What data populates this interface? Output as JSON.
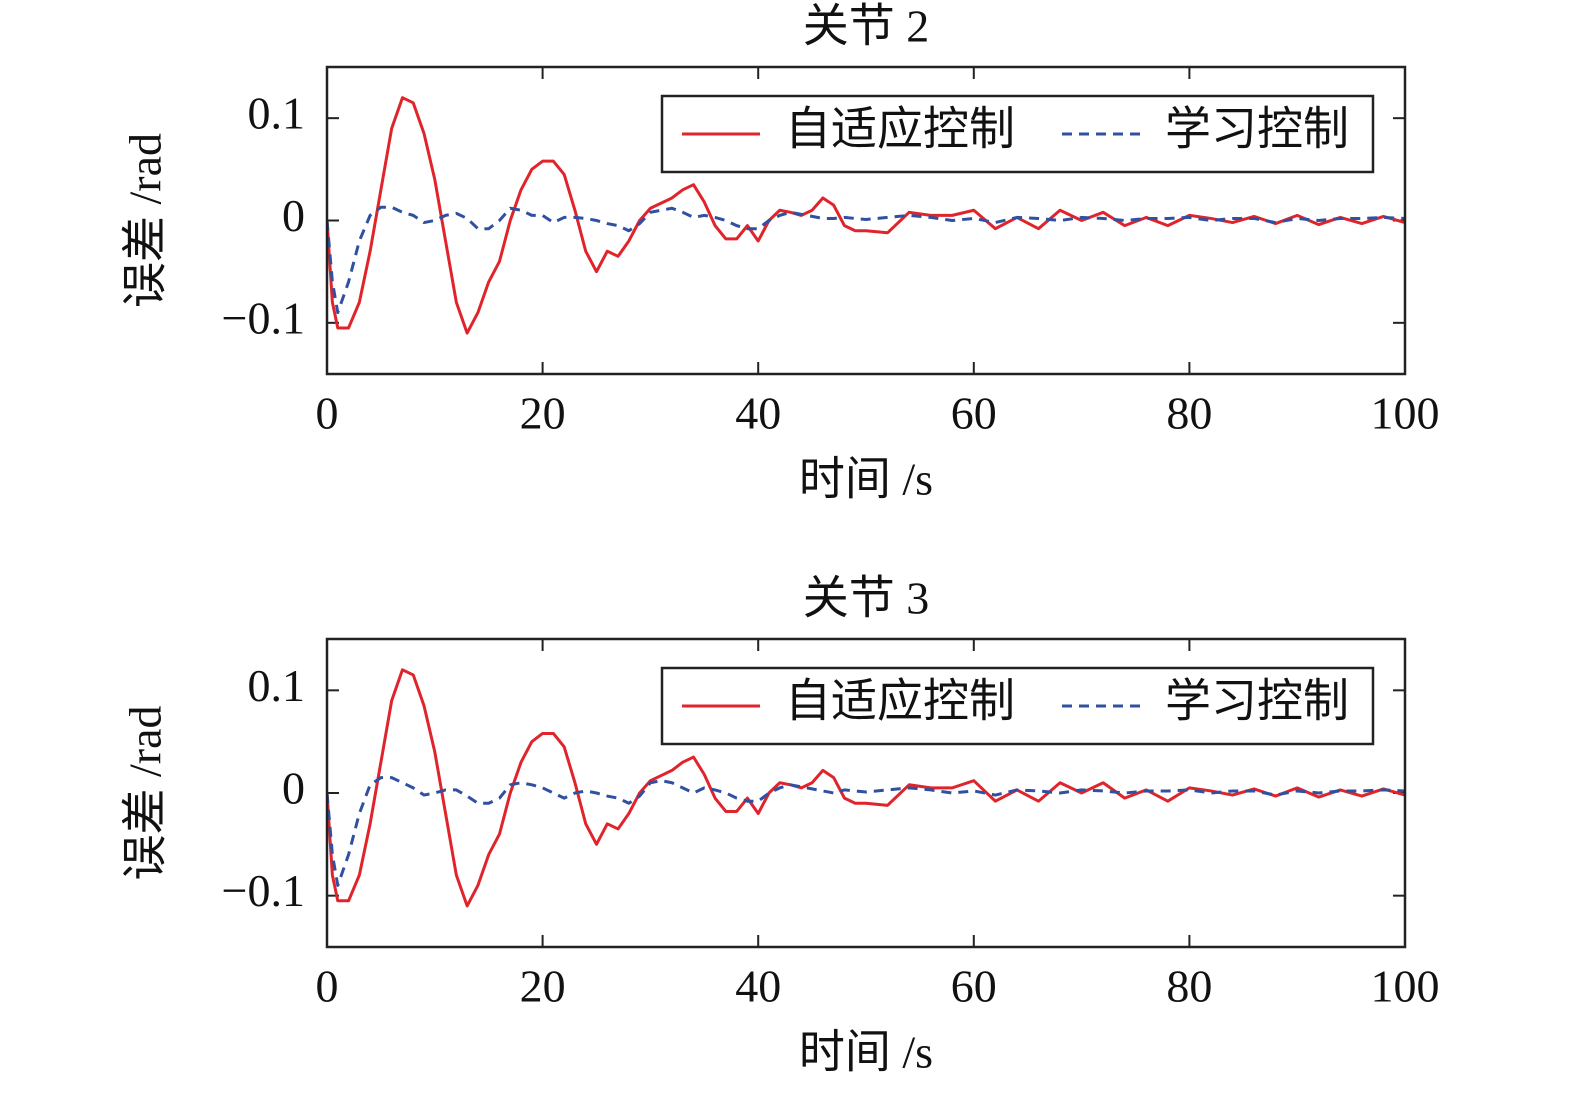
{
  "chart_data": [
    {
      "type": "line",
      "title": "关节 2",
      "xlabel": "时间 /s",
      "ylabel": "误差 /rad",
      "x": [
        0,
        0.5,
        1,
        2,
        3,
        4,
        5,
        6,
        7,
        8,
        9,
        10,
        11,
        12,
        13,
        14,
        15,
        16,
        17,
        18,
        19,
        20,
        21,
        22,
        23,
        24,
        25,
        26,
        27,
        28,
        29,
        30,
        31,
        32,
        33,
        34,
        35,
        36,
        37,
        38,
        39,
        40,
        41,
        42,
        43,
        44,
        45,
        46,
        47,
        48,
        49,
        50,
        52,
        54,
        56,
        58,
        60,
        62,
        64,
        66,
        68,
        70,
        72,
        74,
        76,
        78,
        80,
        82,
        84,
        86,
        88,
        90,
        92,
        94,
        96,
        98,
        100
      ],
      "series": [
        {
          "name": "自适应控制",
          "color": "#e0242b",
          "dash": false,
          "values": [
            0,
            -0.08,
            -0.105,
            -0.105,
            -0.08,
            -0.03,
            0.03,
            0.09,
            0.12,
            0.115,
            0.085,
            0.04,
            -0.02,
            -0.08,
            -0.11,
            -0.09,
            -0.06,
            -0.04,
            0,
            0.03,
            0.05,
            0.058,
            0.058,
            0.045,
            0.01,
            -0.03,
            -0.05,
            -0.03,
            -0.035,
            -0.02,
            0,
            0.012,
            0.017,
            0.022,
            0.03,
            0.035,
            0.018,
            -0.005,
            -0.018,
            -0.018,
            -0.005,
            -0.02,
            0,
            0.01,
            0.008,
            0.005,
            0.01,
            0.022,
            0.015,
            -0.005,
            -0.01,
            -0.01,
            -0.012,
            0.008,
            0.005,
            0.005,
            0.01,
            -0.008,
            0.003,
            -0.008,
            0.01,
            0,
            0.008,
            -0.005,
            0.003,
            -0.005,
            0.005,
            0.002,
            -0.002,
            0.004,
            -0.003,
            0.005,
            -0.004,
            0.003,
            -0.003,
            0.004,
            -0.002
          ]
        },
        {
          "name": "学习控制",
          "color": "#3050a0",
          "dash": true,
          "values": [
            0,
            -0.06,
            -0.09,
            -0.06,
            -0.02,
            0.005,
            0.013,
            0.013,
            0.008,
            0.005,
            -0.002,
            0,
            0.005,
            0.007,
            0.002,
            -0.008,
            -0.008,
            0,
            0.012,
            0.01,
            0.005,
            0.005,
            -0.002,
            0.003,
            0.003,
            0.002,
            0,
            -0.003,
            -0.005,
            -0.01,
            -0.003,
            0.008,
            0.01,
            0.012,
            0.008,
            0.003,
            0.005,
            0.003,
            0,
            -0.005,
            -0.008,
            -0.008,
            0,
            0.005,
            0.008,
            0.006,
            0.004,
            0.002,
            0.002,
            0.003,
            0.002,
            0.001,
            0.003,
            0.005,
            0.003,
            0,
            0.002,
            -0.002,
            0.003,
            0.002,
            0,
            0.003,
            0.002,
            0,
            0.002,
            0.002,
            0.003,
            0,
            0.002,
            0.002,
            -0.002,
            0.002,
            0,
            0.002,
            0.002,
            0.003,
            0.002
          ]
        }
      ],
      "xlim": [
        0,
        100
      ],
      "xticks": [
        0,
        20,
        40,
        60,
        80,
        100
      ],
      "ylim": [
        -0.15,
        0.15
      ],
      "yticks": [
        {
          "value": -0.1,
          "label": "−0.1"
        },
        0,
        0.1
      ],
      "legend": "top-right",
      "grid": false
    },
    {
      "type": "line",
      "title": "关节 3",
      "xlabel": "时间 /s",
      "ylabel": "误差 /rad",
      "x": [
        0,
        0.5,
        1,
        2,
        3,
        4,
        5,
        6,
        7,
        8,
        9,
        10,
        11,
        12,
        13,
        14,
        15,
        16,
        17,
        18,
        19,
        20,
        21,
        22,
        23,
        24,
        25,
        26,
        27,
        28,
        29,
        30,
        31,
        32,
        33,
        34,
        35,
        36,
        37,
        38,
        39,
        40,
        41,
        42,
        43,
        44,
        45,
        46,
        47,
        48,
        49,
        50,
        52,
        54,
        56,
        58,
        60,
        62,
        64,
        66,
        68,
        70,
        72,
        74,
        76,
        78,
        80,
        82,
        84,
        86,
        88,
        90,
        92,
        94,
        96,
        98,
        100
      ],
      "series": [
        {
          "name": "自适应控制",
          "color": "#e0242b",
          "dash": false,
          "values": [
            0,
            -0.08,
            -0.105,
            -0.105,
            -0.08,
            -0.03,
            0.03,
            0.09,
            0.12,
            0.115,
            0.085,
            0.04,
            -0.02,
            -0.08,
            -0.11,
            -0.09,
            -0.06,
            -0.04,
            0,
            0.03,
            0.05,
            0.058,
            0.058,
            0.045,
            0.01,
            -0.03,
            -0.05,
            -0.03,
            -0.035,
            -0.02,
            0,
            0.012,
            0.017,
            0.022,
            0.03,
            0.035,
            0.018,
            -0.005,
            -0.018,
            -0.018,
            -0.005,
            -0.02,
            0,
            0.01,
            0.008,
            0.005,
            0.01,
            0.022,
            0.015,
            -0.005,
            -0.01,
            -0.01,
            -0.012,
            0.008,
            0.005,
            0.005,
            0.012,
            -0.008,
            0.003,
            -0.008,
            0.01,
            0,
            0.01,
            -0.005,
            0.003,
            -0.008,
            0.005,
            0.002,
            -0.002,
            0.004,
            -0.003,
            0.005,
            -0.004,
            0.003,
            -0.003,
            0.004,
            -0.002
          ]
        },
        {
          "name": "学习控制",
          "color": "#3050a0",
          "dash": true,
          "values": [
            0,
            -0.06,
            -0.09,
            -0.06,
            -0.02,
            0.008,
            0.015,
            0.015,
            0.01,
            0.005,
            -0.002,
            0,
            0.003,
            0.003,
            -0.003,
            -0.01,
            -0.01,
            -0.005,
            0.008,
            0.01,
            0.008,
            0.005,
            0,
            -0.005,
            0,
            0.002,
            0,
            -0.003,
            -0.005,
            -0.01,
            -0.003,
            0.01,
            0.012,
            0.01,
            0.005,
            0,
            0.005,
            0.003,
            0,
            -0.005,
            -0.008,
            -0.008,
            0,
            0.005,
            0.008,
            0.006,
            0.004,
            0.002,
            0,
            0.003,
            0.002,
            0.001,
            0.003,
            0.005,
            0.003,
            0,
            0.002,
            -0.002,
            0.003,
            0.002,
            0,
            0.003,
            0.002,
            0,
            0.002,
            0.002,
            0.003,
            0,
            0.002,
            0.002,
            -0.002,
            0.002,
            0,
            0.002,
            0.002,
            0.003,
            0.002
          ]
        }
      ],
      "xlim": [
        0,
        100
      ],
      "xticks": [
        0,
        20,
        40,
        60,
        80,
        100
      ],
      "ylim": [
        -0.15,
        0.15
      ],
      "yticks": [
        {
          "value": -0.1,
          "label": "−0.1"
        },
        0,
        0.1
      ],
      "legend": "top-right",
      "grid": false
    }
  ]
}
